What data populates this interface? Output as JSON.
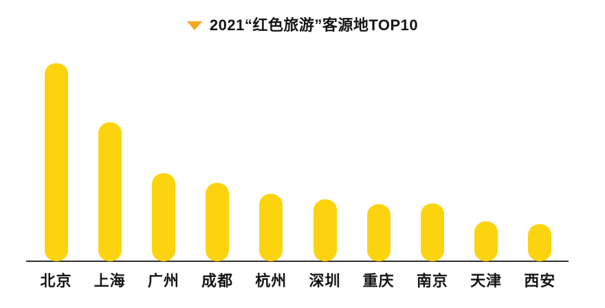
{
  "header": {
    "title": "2021“红色旅游”客源地TOP10"
  },
  "colors": {
    "bar": "#FCD30F",
    "marker_triangle": "#F7A81F",
    "text": "#141414",
    "axis_line": "#2e2e2e",
    "background": "#ffffff"
  },
  "chart_data": {
    "type": "bar",
    "title": "2021“红色旅游”客源地TOP10",
    "categories": [
      "北京",
      "上海",
      "广州",
      "成都",
      "杭州",
      "深圳",
      "重庆",
      "南京",
      "天津",
      "西安"
    ],
    "values": [
      288,
      202,
      128,
      114,
      98,
      90,
      83,
      84,
      58,
      54
    ],
    "value_note": "no numeric value axis shown; values are relative bar heights measured in pixels (Beijing tallest)",
    "xlabel": "",
    "ylabel": "",
    "grid": false,
    "legend": false,
    "orientation": "vertical",
    "bar_color": "#FCD30F"
  }
}
